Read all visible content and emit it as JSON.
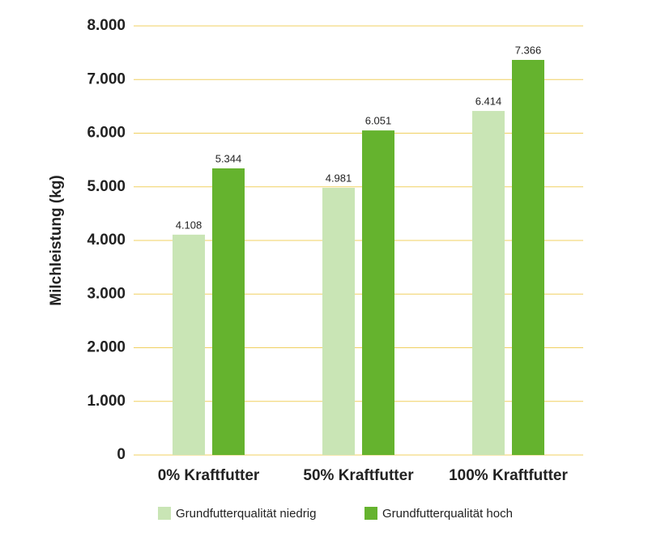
{
  "chart_data": {
    "type": "bar",
    "y_label": "Milchleistung (kg)",
    "categories": [
      "0% Kraftfutter",
      "50% Kraftfutter",
      "100% Kraftfutter"
    ],
    "series": [
      {
        "name": "Grundfutterqualität niedrig",
        "color": "#c9e5b5",
        "values": [
          4108,
          4981,
          6414
        ],
        "value_labels": [
          "4.108",
          "4.981",
          "6.414"
        ]
      },
      {
        "name": "Grundfutterqualität hoch",
        "color": "#65b32e",
        "values": [
          5344,
          6051,
          7366
        ],
        "value_labels": [
          "5.344",
          "6.051",
          "7.366"
        ]
      }
    ],
    "ylim": [
      0,
      8000
    ],
    "yticks": [
      0,
      {
        "value": 1000,
        "label": "1.000"
      },
      {
        "value": 2000,
        "label": "2.000"
      },
      {
        "value": 3000,
        "label": "3.000"
      },
      {
        "value": 4000,
        "label": "4.000"
      },
      {
        "value": 5000,
        "label": "5.000"
      },
      {
        "value": 6000,
        "label": "6.000"
      },
      {
        "value": 7000,
        "label": "7.000"
      },
      {
        "value": 8000,
        "label": "8.000"
      }
    ],
    "grid": true,
    "grid_color": "#f0d060",
    "legend": "bottom"
  }
}
